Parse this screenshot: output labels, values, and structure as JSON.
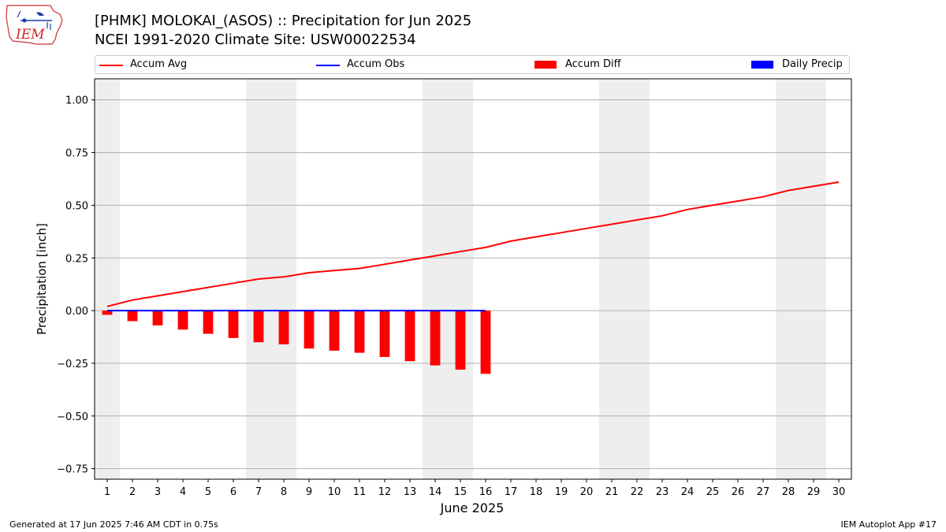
{
  "header": {
    "title_line1": "[PHMK] MOLOKAI_(ASOS) :: Precipitation for Jun 2025",
    "title_line2": "NCEI 1991-2020 Climate Site: USW00022534",
    "logo_text": "IEM"
  },
  "footer": {
    "left": "Generated at 17 Jun 2025 7:46 AM CDT in 0.75s",
    "right": "IEM Autoplot App #17"
  },
  "legend": {
    "items": [
      {
        "label": "Accum Avg",
        "color": "#ff0000",
        "kind": "line"
      },
      {
        "label": "Accum Obs",
        "color": "#0000ff",
        "kind": "line"
      },
      {
        "label": "Accum Diff",
        "color": "#ff0000",
        "kind": "bar"
      },
      {
        "label": "Daily Precip",
        "color": "#0000ff",
        "kind": "bar"
      }
    ]
  },
  "chart_data": {
    "type": "bar",
    "xlabel": "June 2025",
    "ylabel": "Precipitation [inch]",
    "xlim": [
      0.5,
      30.5
    ],
    "ylim": [
      -0.8,
      1.1
    ],
    "x_ticks": [
      1,
      2,
      3,
      4,
      5,
      6,
      7,
      8,
      9,
      10,
      11,
      12,
      13,
      14,
      15,
      16,
      17,
      18,
      19,
      20,
      21,
      22,
      23,
      24,
      25,
      26,
      27,
      28,
      29,
      30
    ],
    "y_ticks": [
      -0.75,
      -0.5,
      -0.25,
      0.0,
      0.25,
      0.5,
      0.75,
      1.0
    ],
    "y_tick_labels": [
      "−0.75",
      "−0.50",
      "−0.25",
      "0.00",
      "0.25",
      "0.50",
      "0.75",
      "1.00"
    ],
    "grid": "horizontal",
    "weekend_shading": [
      [
        0.5,
        1.5
      ],
      [
        6.5,
        8.5
      ],
      [
        13.5,
        15.5
      ],
      [
        20.5,
        22.5
      ],
      [
        27.5,
        29.5
      ]
    ],
    "shade_color": "#eeeeee",
    "legend_position": "top",
    "series": [
      {
        "name": "Accum Avg",
        "kind": "line",
        "color": "#ff0000",
        "x": [
          1,
          2,
          3,
          4,
          5,
          6,
          7,
          8,
          9,
          10,
          11,
          12,
          13,
          14,
          15,
          16,
          17,
          18,
          19,
          20,
          21,
          22,
          23,
          24,
          25,
          26,
          27,
          28,
          29,
          30
        ],
        "values": [
          0.02,
          0.05,
          0.07,
          0.09,
          0.11,
          0.13,
          0.15,
          0.16,
          0.18,
          0.19,
          0.2,
          0.22,
          0.24,
          0.26,
          0.28,
          0.3,
          0.33,
          0.35,
          0.37,
          0.39,
          0.41,
          0.43,
          0.45,
          0.48,
          0.5,
          0.52,
          0.54,
          0.57,
          0.59,
          0.61
        ]
      },
      {
        "name": "Accum Obs",
        "kind": "line",
        "color": "#0000ff",
        "x": [
          1,
          2,
          3,
          4,
          5,
          6,
          7,
          8,
          9,
          10,
          11,
          12,
          13,
          14,
          15,
          16
        ],
        "values": [
          0,
          0,
          0,
          0,
          0,
          0,
          0,
          0,
          0,
          0,
          0,
          0,
          0,
          0,
          0,
          0
        ]
      },
      {
        "name": "Accum Diff",
        "kind": "bar",
        "color": "#ff0000",
        "x": [
          1,
          2,
          3,
          4,
          5,
          6,
          7,
          8,
          9,
          10,
          11,
          12,
          13,
          14,
          15,
          16
        ],
        "values": [
          -0.02,
          -0.05,
          -0.07,
          -0.09,
          -0.11,
          -0.13,
          -0.15,
          -0.16,
          -0.18,
          -0.19,
          -0.2,
          -0.22,
          -0.24,
          -0.26,
          -0.28,
          -0.3
        ]
      },
      {
        "name": "Daily Precip",
        "kind": "bar",
        "color": "#0000ff",
        "x": [
          1,
          2,
          3,
          4,
          5,
          6,
          7,
          8,
          9,
          10,
          11,
          12,
          13,
          14,
          15,
          16
        ],
        "values": [
          0,
          0,
          0,
          0,
          0,
          0,
          0,
          0,
          0,
          0,
          0,
          0,
          0,
          0,
          0,
          0
        ]
      }
    ]
  }
}
